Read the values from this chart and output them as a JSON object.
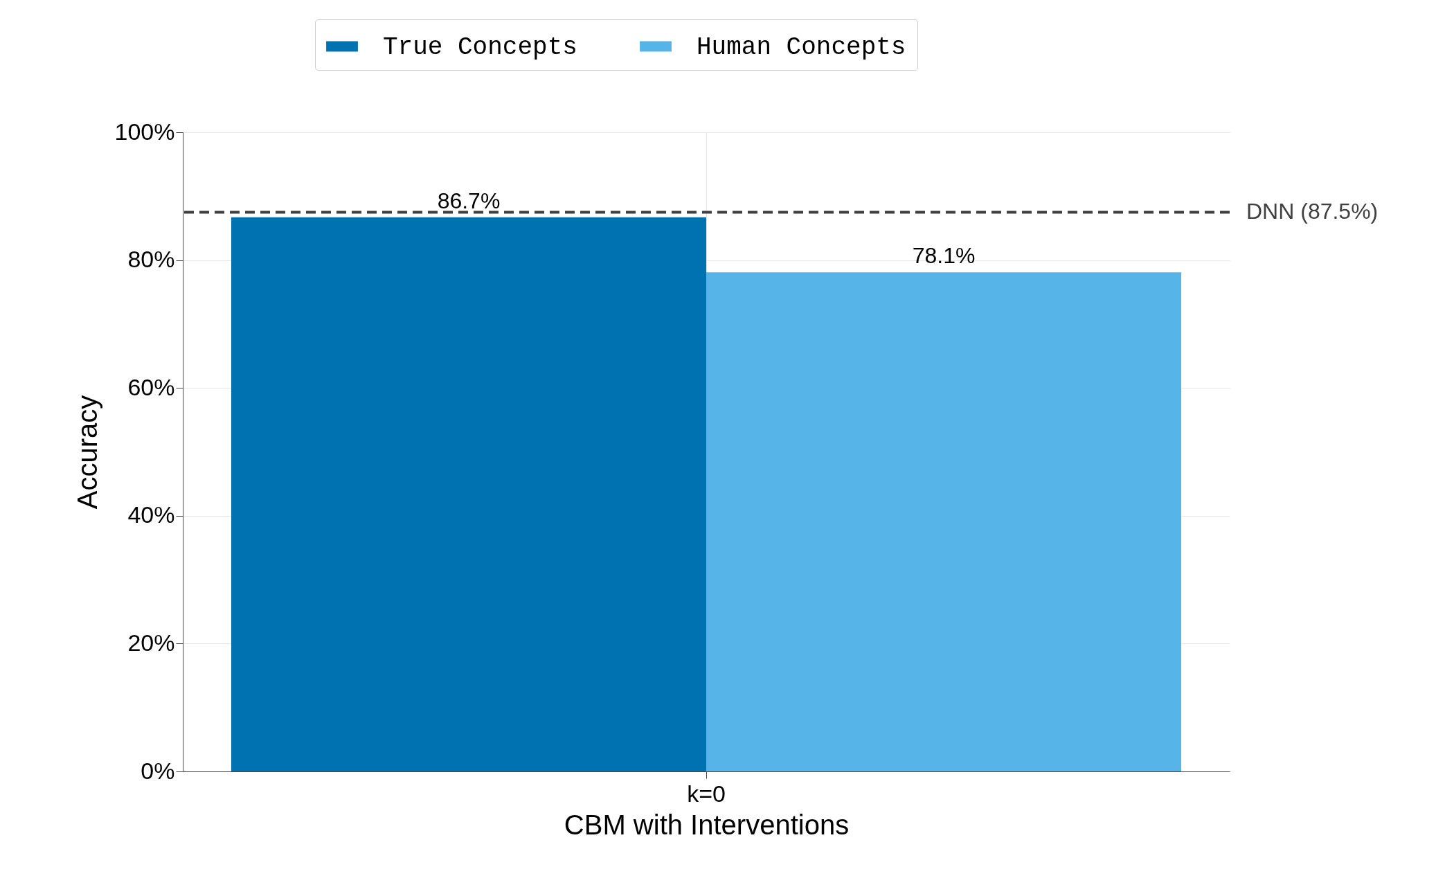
{
  "chart_data": {
    "type": "bar",
    "xlabel": "CBM with Interventions",
    "ylabel": "Accuracy",
    "categories": [
      "k=0"
    ],
    "series": [
      {
        "name": "True Concepts",
        "color": "#0072b2",
        "values": [
          86.7
        ],
        "value_labels": [
          "86.7%"
        ]
      },
      {
        "name": "Human Concepts",
        "color": "#56b4e9",
        "values": [
          78.1
        ],
        "value_labels": [
          "78.1%"
        ]
      }
    ],
    "ylim": [
      0,
      100
    ],
    "yticks": [
      {
        "value": 0,
        "label": "0%"
      },
      {
        "value": 20,
        "label": "20%"
      },
      {
        "value": 40,
        "label": "40%"
      },
      {
        "value": 60,
        "label": "60%"
      },
      {
        "value": 80,
        "label": "80%"
      },
      {
        "value": 100,
        "label": "100%"
      }
    ],
    "ref_lines": [
      {
        "axis": "y",
        "value": 87.5,
        "label": "DNN (87.5%)",
        "color": "#404040",
        "line_style": "dashed"
      }
    ],
    "grid": true,
    "legend": "top"
  }
}
